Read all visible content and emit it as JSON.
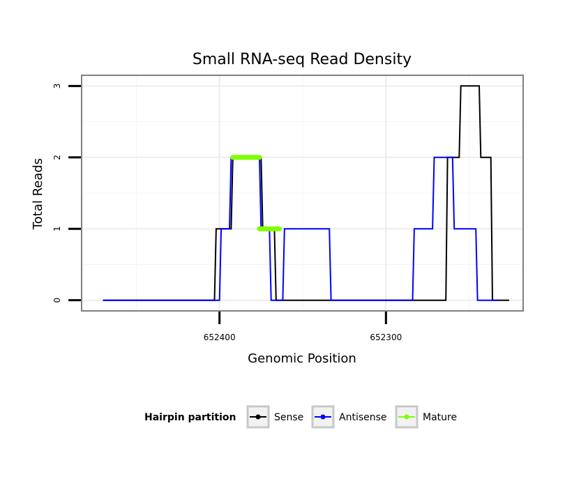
{
  "chart_data": {
    "type": "line",
    "title": "Small RNA-seq Read Density",
    "xlabel": "Genomic Position",
    "ylabel": "Total Reads",
    "x_reversed": true,
    "xlim": [
      652482,
      652218
    ],
    "ylim": [
      -0.14,
      3.14
    ],
    "x_ticks": [
      652400,
      652300
    ],
    "x_tick_labels": [
      "652400",
      "652300"
    ],
    "y_ticks": [
      0,
      1,
      2,
      3
    ],
    "y_tick_labels": [
      "0",
      "1",
      "2",
      "3"
    ],
    "grid": true,
    "legend": {
      "title": "Hairpin partition",
      "position": "bottom",
      "entries": [
        {
          "name": "Sense",
          "color": "#000000"
        },
        {
          "name": "Antisense",
          "color": "#0000ff"
        },
        {
          "name": "Mature",
          "color": "#7fff00"
        }
      ]
    },
    "series": [
      {
        "name": "Sense",
        "color": "#000000",
        "points": [
          [
            652470,
            0
          ],
          [
            652403,
            0
          ],
          [
            652402,
            1
          ],
          [
            652393,
            1
          ],
          [
            652392,
            2
          ],
          [
            652375,
            2
          ],
          [
            652374,
            1
          ],
          [
            652367,
            1
          ],
          [
            652366,
            0
          ],
          [
            652332,
            0
          ],
          [
            652331,
            0
          ],
          [
            652293,
            0
          ],
          [
            652292,
            0
          ],
          [
            652264,
            0
          ],
          [
            652263,
            2
          ],
          [
            652256,
            2
          ],
          [
            652255,
            3
          ],
          [
            652244,
            3
          ],
          [
            652243,
            2
          ],
          [
            652237,
            2
          ],
          [
            652236,
            0
          ],
          [
            652226,
            0
          ]
        ]
      },
      {
        "name": "Antisense",
        "color": "#0000ff",
        "points": [
          [
            652470,
            0
          ],
          [
            652400,
            0
          ],
          [
            652399,
            1
          ],
          [
            652394,
            1
          ],
          [
            652393,
            2
          ],
          [
            652376,
            2
          ],
          [
            652375,
            1
          ],
          [
            652370,
            1
          ],
          [
            652369,
            0
          ],
          [
            652362,
            0
          ],
          [
            652361,
            1
          ],
          [
            652334,
            1
          ],
          [
            652333,
            0
          ],
          [
            652284,
            0
          ],
          [
            652283,
            1
          ],
          [
            652272,
            1
          ],
          [
            652271,
            2
          ],
          [
            652260,
            2
          ],
          [
            652259,
            1
          ],
          [
            652246,
            1
          ],
          [
            652245,
            0
          ],
          [
            652232,
            0
          ]
        ]
      },
      {
        "name": "Mature",
        "color": "#7fff00",
        "segments": [
          {
            "x_start": 652392,
            "x_end": 652376,
            "y": 2
          },
          {
            "x_start": 652376,
            "x_end": 652364,
            "y": 1
          }
        ]
      }
    ]
  }
}
